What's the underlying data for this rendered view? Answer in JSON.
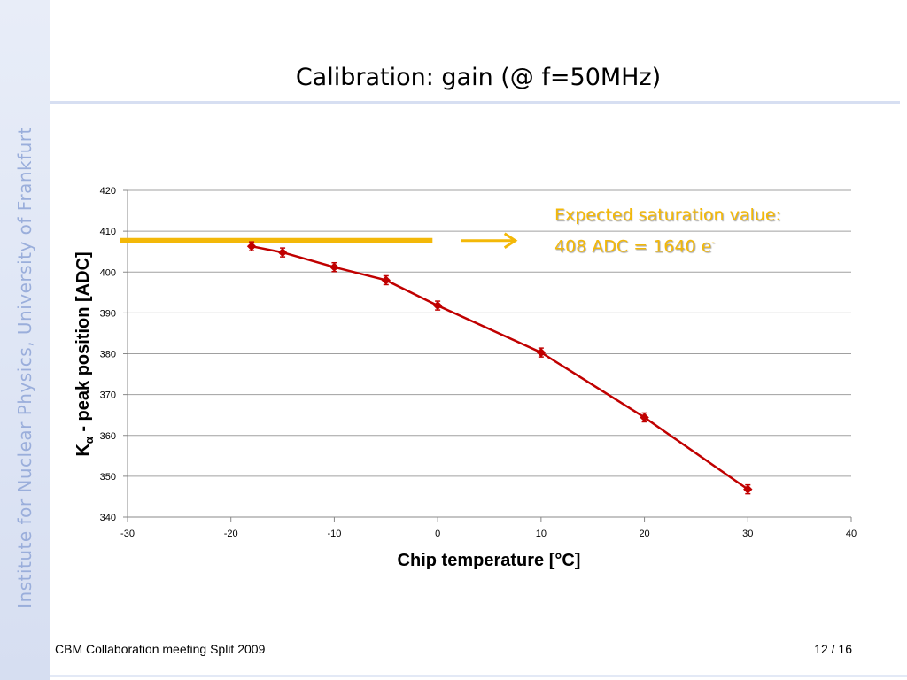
{
  "slide": {
    "side_text": "Institute for Nuclear Physics, University of Frankfurt",
    "title": "Calibration: gain (@ f=50MHz)",
    "footer_left": "CBM Collaboration meeting Split 2009",
    "footer_right": "12 / 16"
  },
  "annotation": {
    "line1": "Expected saturation value:",
    "line2": "408 ADC  = 1640 e",
    "line2_sup": "-"
  },
  "colors": {
    "series": "#c00000",
    "annotation": "#f3b808",
    "gridline": "#a0a0a0"
  },
  "chart_data": {
    "type": "line",
    "title": "",
    "xlabel": "Chip temperature [°C]",
    "ylabel_main": "K",
    "ylabel_sub": "α",
    "ylabel_rest": " - peak position [ADC]",
    "xlim": [
      -30,
      40
    ],
    "ylim": [
      340,
      420
    ],
    "xticks": [
      -30,
      -20,
      -10,
      0,
      10,
      20,
      30,
      40
    ],
    "yticks": [
      340,
      350,
      360,
      370,
      380,
      390,
      400,
      410,
      420
    ],
    "grid": true,
    "series": [
      {
        "x": [
          -18,
          -15,
          -10,
          -5,
          0,
          10,
          20,
          30
        ],
        "y": [
          406.3,
          404.8,
          401.2,
          398.0,
          391.8,
          380.3,
          364.4,
          346.8
        ]
      }
    ],
    "reference_line": {
      "y": 409,
      "x_range": [
        -30,
        -0.5
      ],
      "color": "#f3b808"
    },
    "arrow": {
      "y": 409,
      "x_range": [
        2.3,
        7.5
      ],
      "color": "#f3b808"
    }
  }
}
